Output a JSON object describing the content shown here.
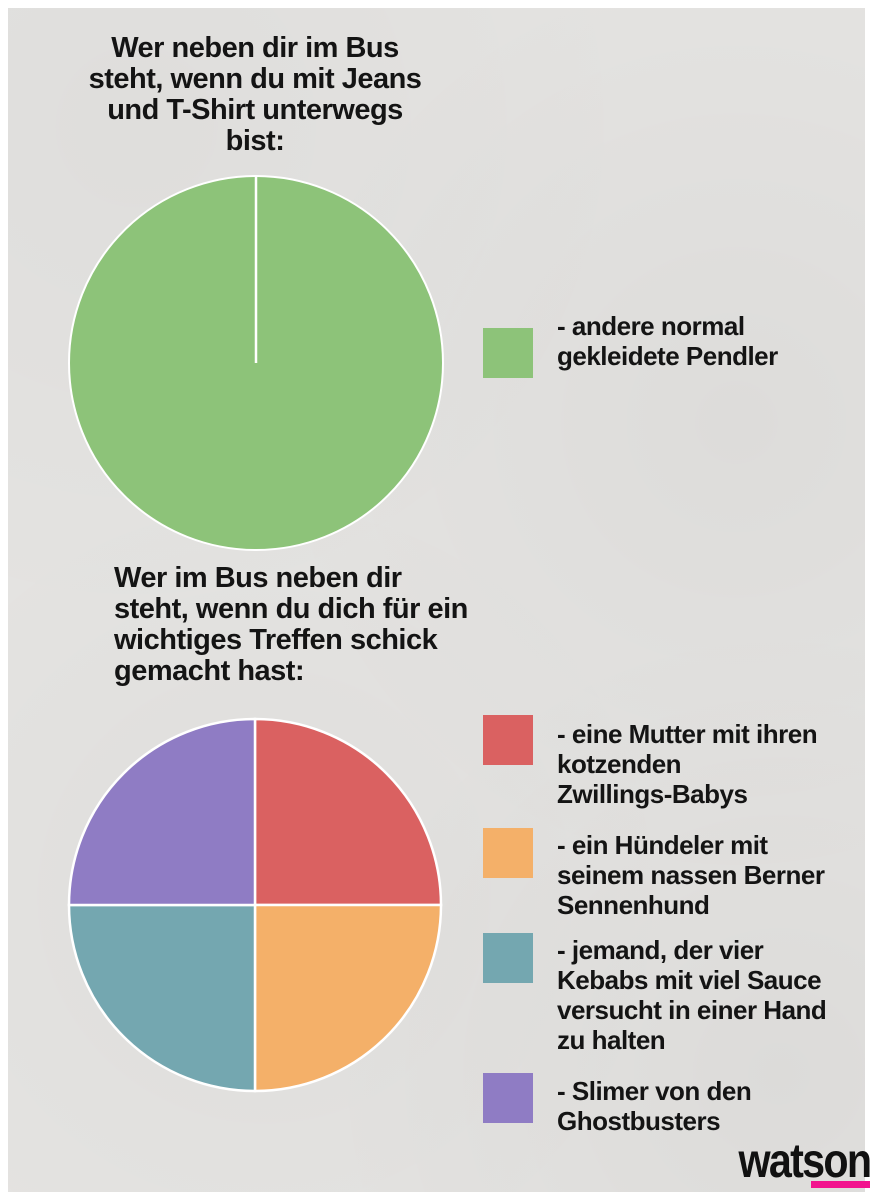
{
  "background": {
    "frame_color": "#ffffff",
    "paper_color": "#e4e3e1",
    "text_color": "#141414"
  },
  "chart_data": [
    {
      "type": "pie",
      "title": "Wer neben dir im Bus\nsteht, wenn du mit Jeans\nund T-Shirt unterwegs\nbist:",
      "legend_position": "right",
      "slices": [
        {
          "label": "- andere normal\ngekleidete Pendler",
          "value": 100,
          "color": "#8dc379"
        }
      ]
    },
    {
      "type": "pie",
      "title": "Wer im Bus neben dir\nsteht, wenn du dich für ein\nwichtiges Treffen schick\ngemacht hast:",
      "legend_position": "right",
      "slices": [
        {
          "label": "- eine Mutter mit ihren\nkotzenden\nZwillings-Babys",
          "value": 25,
          "color": "#da6161"
        },
        {
          "label": "- ein Hündeler mit\nseinem nassen Berner\nSennenhund",
          "value": 25,
          "color": "#f4b069"
        },
        {
          "label": "- jemand, der vier\nKebabs mit viel Sauce\nversucht in einer Hand\nzu halten",
          "value": 25,
          "color": "#74a7b0"
        },
        {
          "label": "- Slimer von den\nGhostbusters",
          "value": 25,
          "color": "#8f7cc4"
        }
      ]
    }
  ],
  "logo": {
    "text": "watson",
    "accent_color": "#f2148e"
  }
}
